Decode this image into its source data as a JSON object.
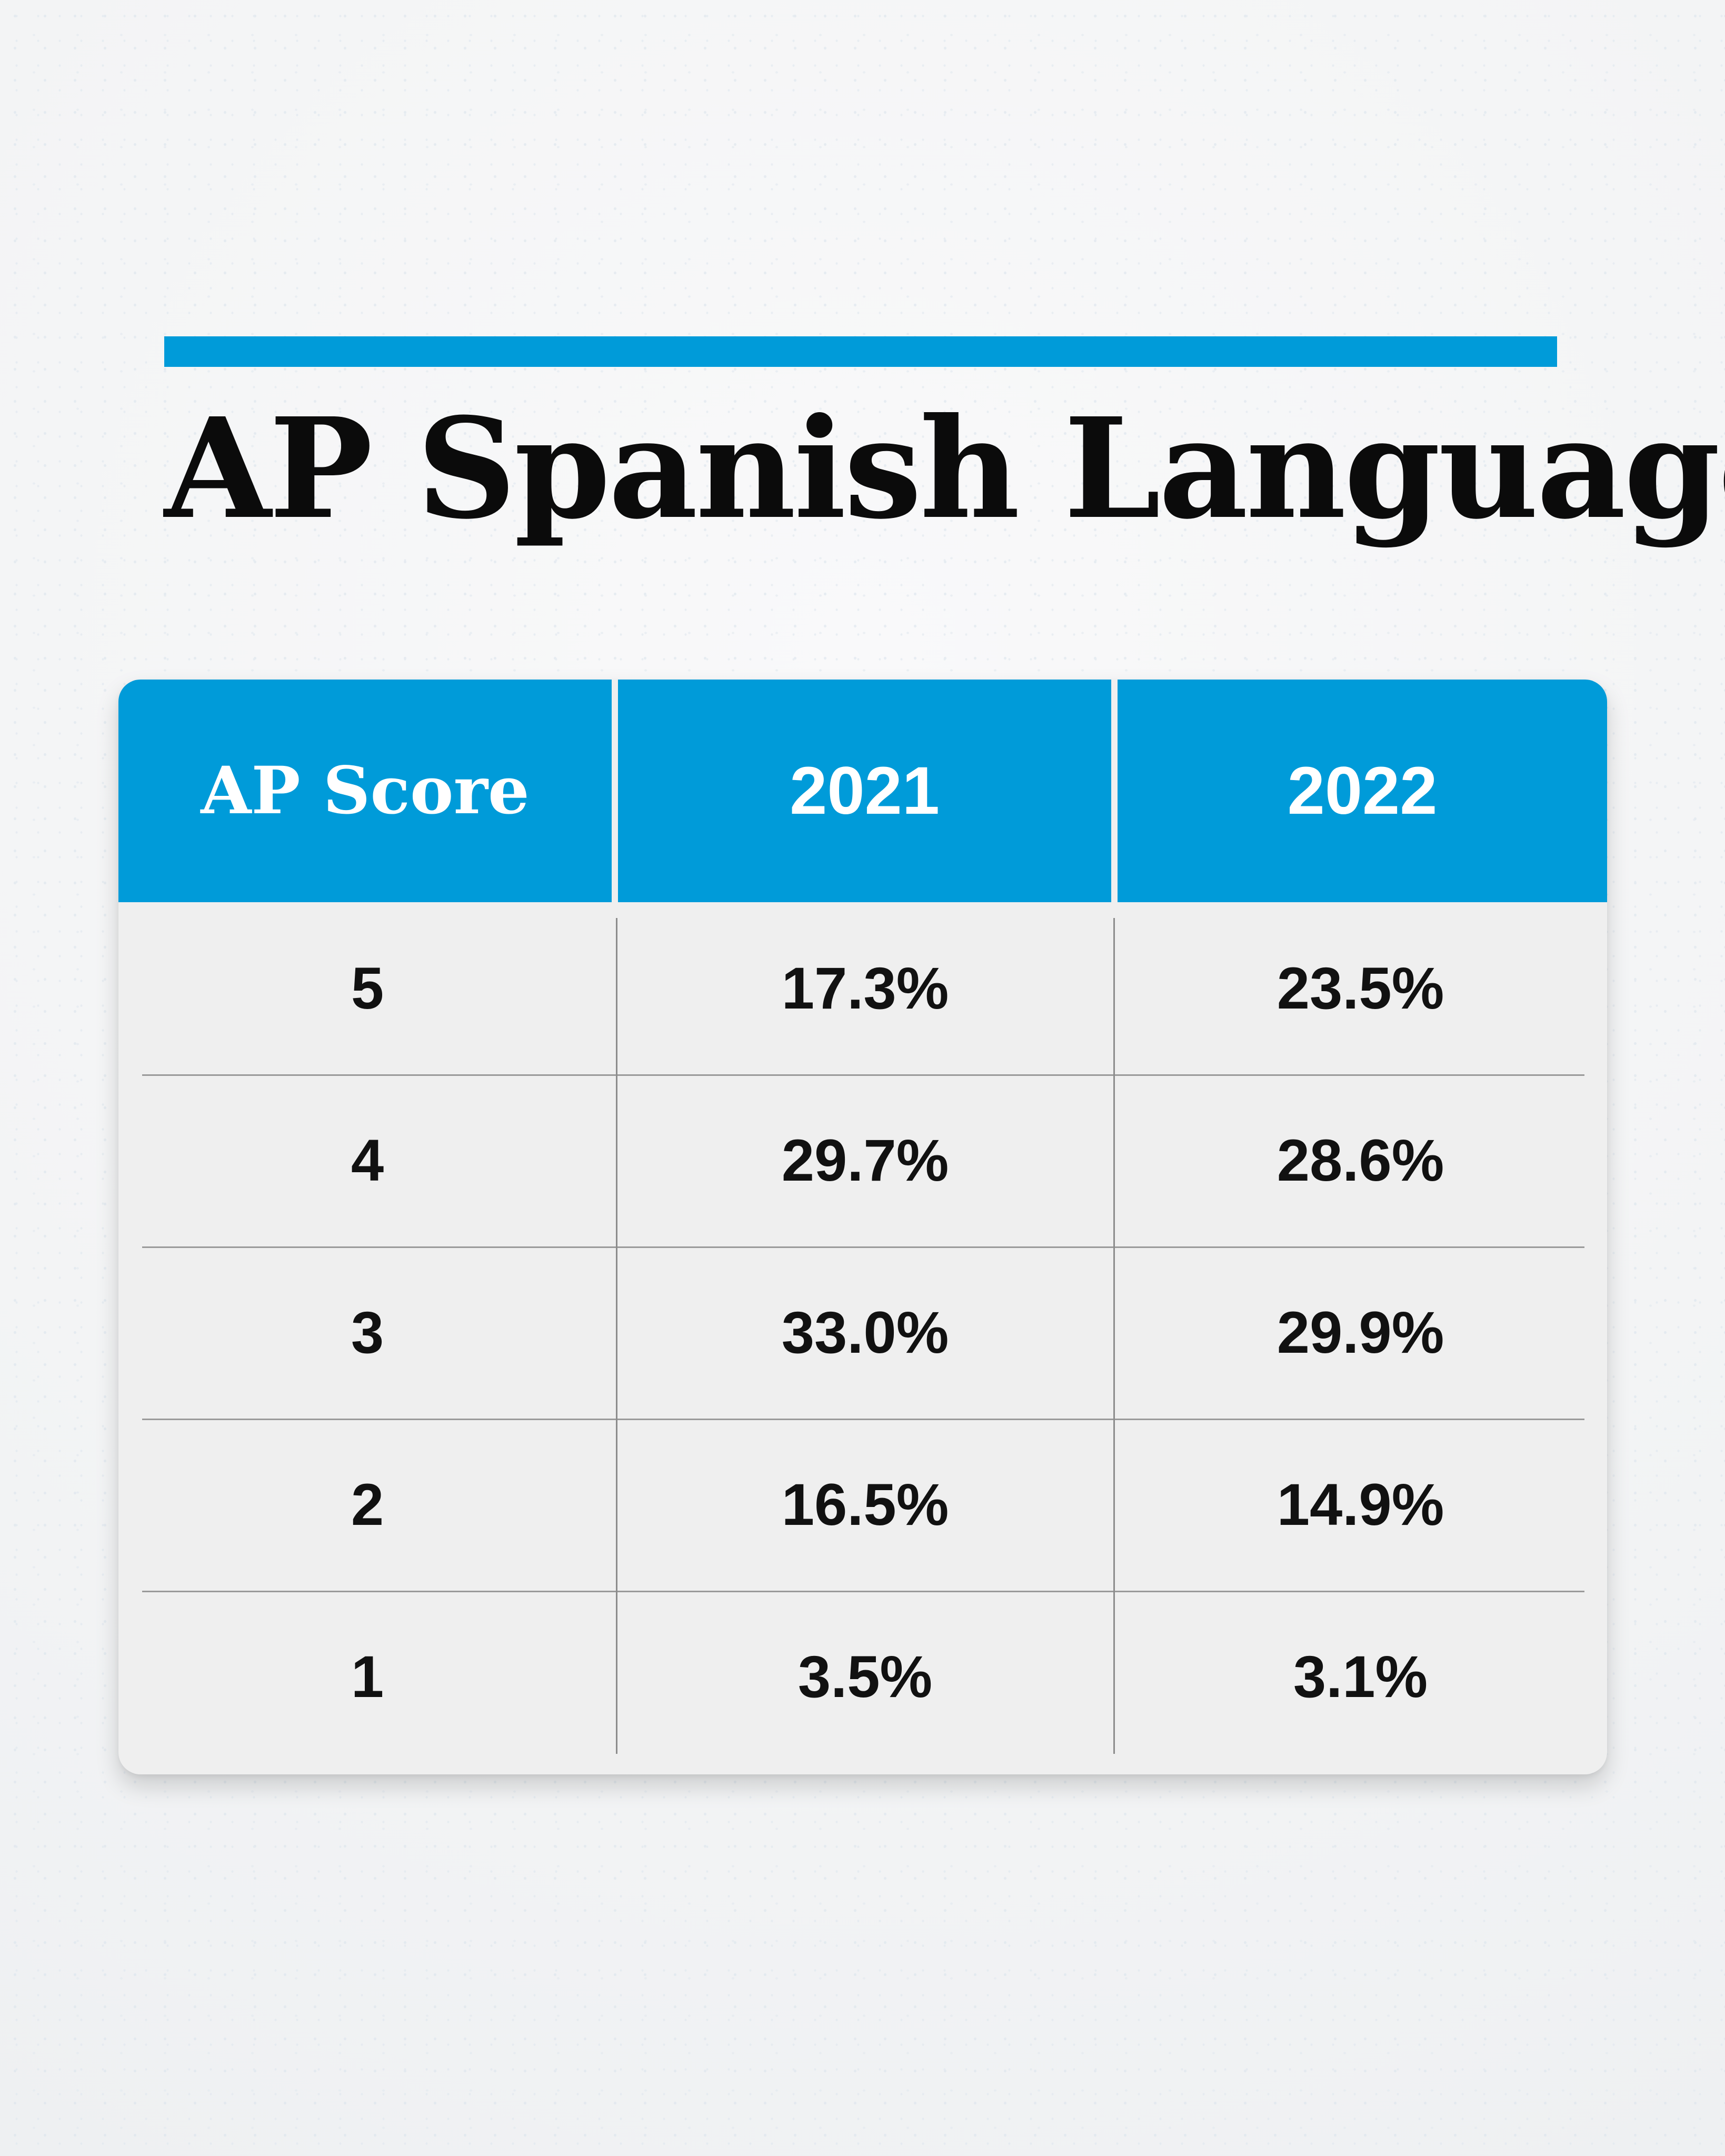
{
  "chart_data": {
    "type": "table",
    "title": "AP Spanish Language",
    "columns": [
      "AP Score",
      "2021",
      "2022"
    ],
    "rows": [
      {
        "score": "5",
        "y2021": "17.3%",
        "y2022": "23.5%"
      },
      {
        "score": "4",
        "y2021": "29.7%",
        "y2022": "28.6%"
      },
      {
        "score": "3",
        "y2021": "33.0%",
        "y2022": "29.9%"
      },
      {
        "score": "2",
        "y2021": "16.5%",
        "y2022": "14.9%"
      },
      {
        "score": "1",
        "y2021": "3.5%",
        "y2022": "3.1%"
      }
    ],
    "series": [
      {
        "name": "2021",
        "values": [
          17.3,
          29.7,
          33.0,
          16.5,
          3.5
        ]
      },
      {
        "name": "2022",
        "values": [
          23.5,
          28.6,
          29.9,
          14.9,
          3.1
        ]
      }
    ],
    "categories": [
      "5",
      "4",
      "3",
      "2",
      "1"
    ]
  },
  "colors": {
    "accent": "#009bd9",
    "header_text": "#ffffff",
    "body_text": "#111111",
    "table_bg": "#efefef",
    "background": "#f4f5f6"
  }
}
